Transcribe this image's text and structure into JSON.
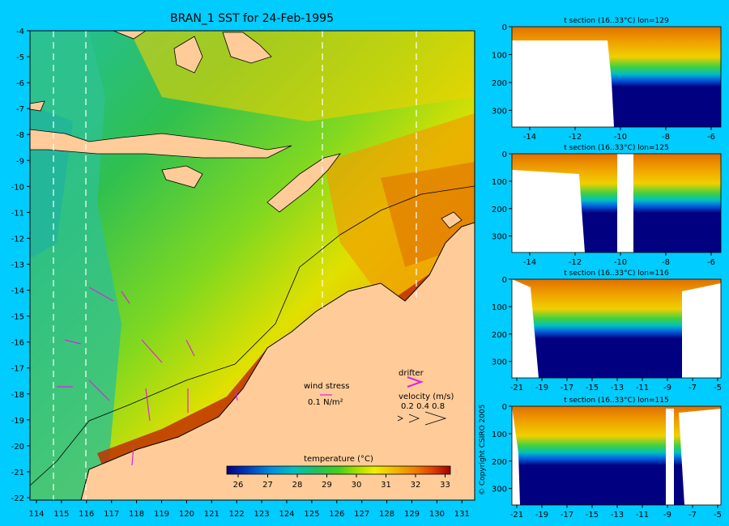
{
  "title": "BRAN_1 SST for 24-Feb-1995",
  "map": {
    "lat_ticks": [
      "-4",
      "-5",
      "-6",
      "-7",
      "-8",
      "-9",
      "-10",
      "-11",
      "-12",
      "-13",
      "-14",
      "-15",
      "-16",
      "-17",
      "-18",
      "-19",
      "-20",
      "-21",
      "-22"
    ],
    "lon_ticks": [
      "114",
      "115",
      "116",
      "117",
      "118",
      "119",
      "120",
      "121",
      "122",
      "123",
      "124",
      "125",
      "126",
      "127",
      "128",
      "129",
      "130",
      "131"
    ],
    "legend": {
      "wind_stress_label": "wind stress",
      "wind_stress_value": "0.1 N/m²",
      "drifter_label": "drifter",
      "velocity_label": "velocity (m/s)",
      "velocity_values": "0.2 0.4 0.8"
    },
    "colorbar": {
      "label": "temperature (°C)",
      "ticks": [
        "26",
        "27",
        "28",
        "29",
        "30",
        "31",
        "32",
        "33"
      ],
      "colors": [
        "#000080",
        "#0040c0",
        "#0090e0",
        "#00c0c0",
        "#20c060",
        "#40d020",
        "#a0e000",
        "#f0f000",
        "#f0c000",
        "#f08000",
        "#e04000",
        "#a00000"
      ]
    }
  },
  "sections": [
    {
      "title": "t section (16..33°C) lon=129",
      "x_ticks": [
        "-14",
        "-12",
        "-10",
        "-8",
        "-6"
      ],
      "y_ticks": [
        "0",
        "100",
        "200",
        "300"
      ]
    },
    {
      "title": "t section (16..33°C) lon=125",
      "x_ticks": [
        "-14",
        "-12",
        "-10",
        "-8",
        "-6"
      ],
      "y_ticks": [
        "0",
        "100",
        "200",
        "300"
      ]
    },
    {
      "title": "t section (16..33°C) lon=116",
      "x_ticks": [
        "-21",
        "-19",
        "-17",
        "-15",
        "-13",
        "-11",
        "-9",
        "-7",
        "-5"
      ],
      "y_ticks": [
        "0",
        "100",
        "200",
        "300"
      ]
    },
    {
      "title": "t section (16..33°C) lon=115",
      "x_ticks": [
        "-21",
        "-19",
        "-17",
        "-15",
        "-13",
        "-11",
        "-9",
        "-7",
        "-5"
      ],
      "y_ticks": [
        "0",
        "100",
        "200",
        "300"
      ]
    }
  ],
  "copyright": "© Copyright CSIRO 2005",
  "colors": {
    "background": "#00ccff",
    "land": "#ffcc99",
    "deep_water": "#000080"
  }
}
